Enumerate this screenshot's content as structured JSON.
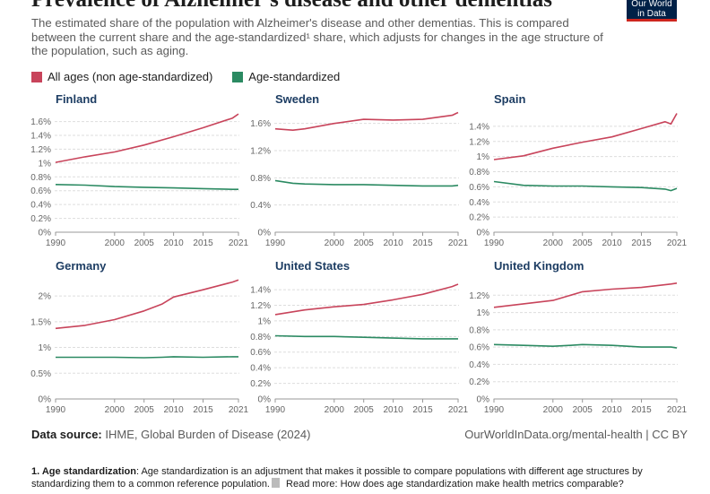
{
  "header": {
    "title": "Prevalence of Alzheimer's disease and other dementias",
    "subtitle": "The estimated share of the population with Alzheimer's disease and other dementias. This is compared between the current share and the age-standardized¹ share, which adjusts for changes in the age structure of the population, such as aging.",
    "logo_line1": "Our World",
    "logo_line2": "in Data"
  },
  "colors": {
    "all_ages": "#c8445b",
    "age_std": "#2b8a62",
    "grid": "#dddddd",
    "axis": "#999999"
  },
  "legend": {
    "all_ages": "All ages (non age-standardized)",
    "age_std": "Age-standardized"
  },
  "footer": {
    "source_label": "Data source:",
    "source_text": " IHME, Global Burden of Disease (2024)",
    "right": "OurWorldInData.org/mental-health | CC BY"
  },
  "note": {
    "label": "1. Age standardization",
    "text": ": Age standardization is an adjustment that makes it possible to compare populations with different age structures by standardizing them to a common reference population.",
    "link": " Read more: How does age standardization make health metrics comparable?"
  },
  "chart_data": [
    {
      "type": "line",
      "title": "Finland",
      "x_ticks": [
        1990,
        2000,
        2005,
        2010,
        2015,
        2021
      ],
      "xlim": [
        1990,
        2021
      ],
      "y_ticks": [
        0,
        0.2,
        0.4,
        0.6,
        0.8,
        1,
        1.2,
        1.4,
        1.6
      ],
      "y_tick_labels": [
        "0%",
        "0.2%",
        "0.4%",
        "0.6%",
        "0.8%",
        "1%",
        "1.2%",
        "1.4%",
        "1.6%"
      ],
      "ylim": [
        0,
        1.75
      ],
      "x": [
        1990,
        1995,
        2000,
        2005,
        2010,
        2015,
        2020,
        2021
      ],
      "series": [
        {
          "name": "All ages (non age-standardized)",
          "values": [
            1.01,
            1.09,
            1.16,
            1.26,
            1.38,
            1.51,
            1.65,
            1.71
          ]
        },
        {
          "name": "Age-standardized",
          "values": [
            0.69,
            0.68,
            0.66,
            0.65,
            0.64,
            0.63,
            0.62,
            0.62
          ]
        }
      ]
    },
    {
      "type": "line",
      "title": "Sweden",
      "x_ticks": [
        1990,
        2000,
        2005,
        2010,
        2015,
        2021
      ],
      "xlim": [
        1990,
        2021
      ],
      "y_ticks": [
        0,
        0.4,
        0.8,
        1.2,
        1.6
      ],
      "y_tick_labels": [
        "0%",
        "0.4%",
        "0.8%",
        "1.2%",
        "1.6%"
      ],
      "ylim": [
        0,
        1.78
      ],
      "x": [
        1990,
        1993,
        1995,
        2000,
        2005,
        2010,
        2015,
        2020,
        2021
      ],
      "series": [
        {
          "name": "All ages (non age-standardized)",
          "values": [
            1.52,
            1.5,
            1.52,
            1.6,
            1.66,
            1.65,
            1.66,
            1.72,
            1.76
          ]
        },
        {
          "name": "Age-standardized",
          "values": [
            0.76,
            0.72,
            0.71,
            0.7,
            0.7,
            0.69,
            0.68,
            0.68,
            0.69
          ]
        }
      ]
    },
    {
      "type": "line",
      "title": "Spain",
      "x_ticks": [
        1990,
        2000,
        2005,
        2010,
        2015,
        2021
      ],
      "xlim": [
        1990,
        2021
      ],
      "y_ticks": [
        0,
        0.2,
        0.4,
        0.6,
        0.8,
        1,
        1.2,
        1.4
      ],
      "y_tick_labels": [
        "0%",
        "0.2%",
        "0.4%",
        "0.6%",
        "0.8%",
        "1%",
        "1.2%",
        "1.4%"
      ],
      "ylim": [
        0,
        1.6
      ],
      "x": [
        1990,
        1995,
        2000,
        2005,
        2010,
        2015,
        2019,
        2020,
        2021
      ],
      "series": [
        {
          "name": "All ages (non age-standardized)",
          "values": [
            0.96,
            1.01,
            1.11,
            1.19,
            1.26,
            1.37,
            1.46,
            1.43,
            1.57
          ]
        },
        {
          "name": "Age-standardized",
          "values": [
            0.67,
            0.62,
            0.61,
            0.61,
            0.6,
            0.59,
            0.57,
            0.55,
            0.58
          ]
        }
      ]
    },
    {
      "type": "line",
      "title": "Germany",
      "x_ticks": [
        1990,
        2000,
        2005,
        2010,
        2015,
        2021
      ],
      "xlim": [
        1990,
        2021
      ],
      "y_ticks": [
        0,
        0.5,
        1,
        1.5,
        2
      ],
      "y_tick_labels": [
        "0%",
        "0.5%",
        "1%",
        "1.5%",
        "2%"
      ],
      "ylim": [
        0,
        2.35
      ],
      "x": [
        1990,
        1995,
        2000,
        2005,
        2008,
        2010,
        2015,
        2020,
        2021
      ],
      "series": [
        {
          "name": "All ages (non age-standardized)",
          "values": [
            1.37,
            1.43,
            1.54,
            1.71,
            1.84,
            1.98,
            2.12,
            2.27,
            2.31
          ]
        },
        {
          "name": "Age-standardized",
          "values": [
            0.81,
            0.81,
            0.81,
            0.8,
            0.81,
            0.82,
            0.81,
            0.82,
            0.82
          ]
        }
      ]
    },
    {
      "type": "line",
      "title": "United States",
      "x_ticks": [
        1990,
        2000,
        2005,
        2010,
        2015,
        2021
      ],
      "xlim": [
        1990,
        2021
      ],
      "y_ticks": [
        0,
        0.2,
        0.4,
        0.6,
        0.8,
        1,
        1.2,
        1.4
      ],
      "y_tick_labels": [
        "0%",
        "0.2%",
        "0.4%",
        "0.6%",
        "0.8%",
        "1%",
        "1.2%",
        "1.4%"
      ],
      "ylim": [
        0,
        1.55
      ],
      "x": [
        1990,
        1995,
        2000,
        2005,
        2010,
        2015,
        2020,
        2021
      ],
      "series": [
        {
          "name": "All ages (non age-standardized)",
          "values": [
            1.08,
            1.14,
            1.18,
            1.21,
            1.27,
            1.34,
            1.44,
            1.47
          ]
        },
        {
          "name": "Age-standardized",
          "values": [
            0.81,
            0.8,
            0.8,
            0.79,
            0.78,
            0.77,
            0.77,
            0.77
          ]
        }
      ]
    },
    {
      "type": "line",
      "title": "United Kingdom",
      "x_ticks": [
        1990,
        2000,
        2005,
        2010,
        2015,
        2021
      ],
      "xlim": [
        1990,
        2021
      ],
      "y_ticks": [
        0,
        0.2,
        0.4,
        0.6,
        0.8,
        1,
        1.2
      ],
      "y_tick_labels": [
        "0%",
        "0.2%",
        "0.4%",
        "0.6%",
        "0.8%",
        "1%",
        "1.2%"
      ],
      "ylim": [
        0,
        1.4
      ],
      "x": [
        1990,
        1995,
        2000,
        2003,
        2005,
        2010,
        2015,
        2020,
        2021
      ],
      "series": [
        {
          "name": "All ages (non age-standardized)",
          "values": [
            1.06,
            1.1,
            1.14,
            1.2,
            1.24,
            1.27,
            1.29,
            1.33,
            1.34
          ]
        },
        {
          "name": "Age-standardized",
          "values": [
            0.63,
            0.62,
            0.61,
            0.62,
            0.63,
            0.62,
            0.6,
            0.6,
            0.59
          ]
        }
      ]
    }
  ]
}
